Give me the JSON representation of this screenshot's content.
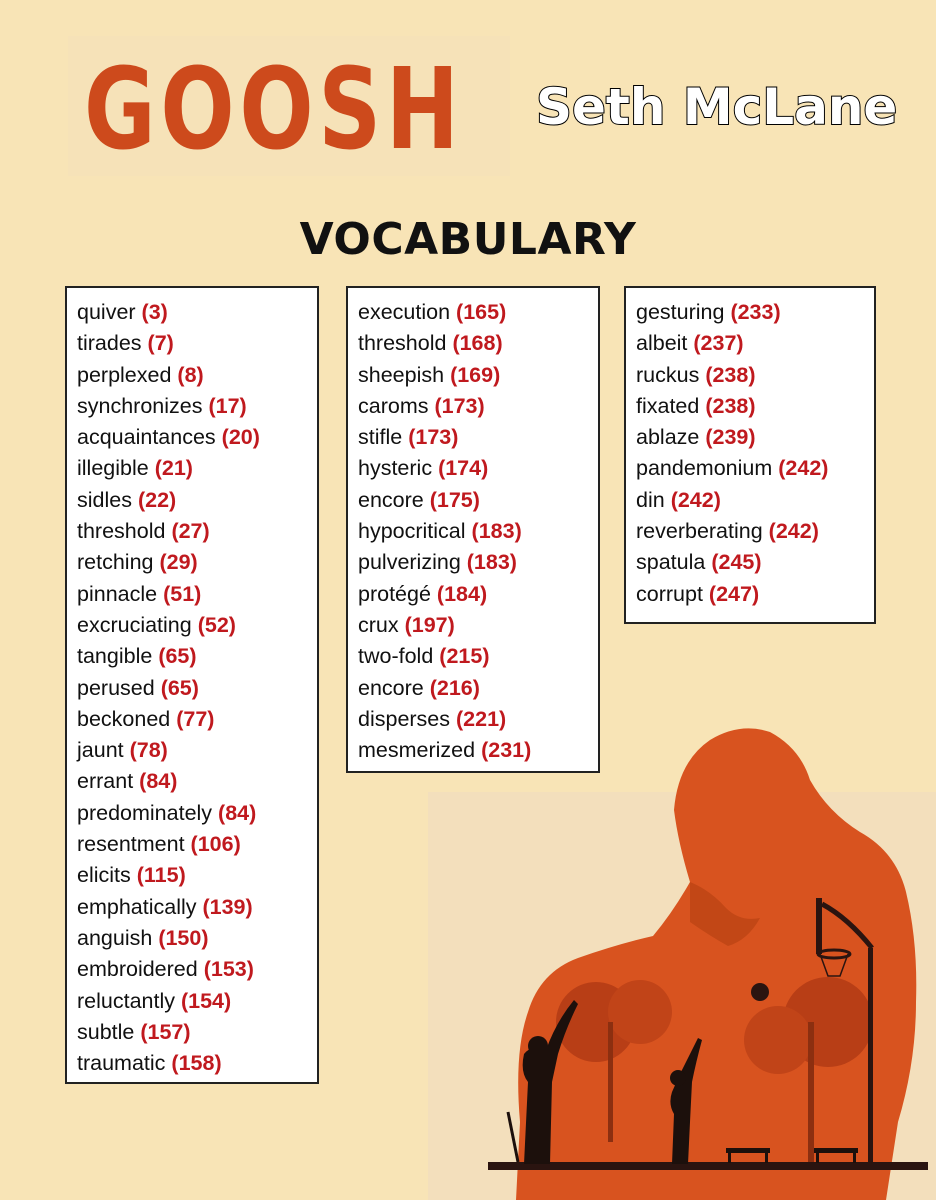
{
  "header": {
    "book_title": "GOOSH",
    "author": "Seth McLane",
    "heading": "VOCABULARY"
  },
  "columns": [
    {
      "items": [
        {
          "word": "quiver",
          "page": "(3)"
        },
        {
          "word": "tirades",
          "page": "(7)"
        },
        {
          "word": "perplexed",
          "page": "(8)"
        },
        {
          "word": "synchronizes",
          "page": "(17)"
        },
        {
          "word": "acquaintances",
          "page": "(20)"
        },
        {
          "word": "illegible",
          "page": "(21)"
        },
        {
          "word": "sidles",
          "page": "(22)"
        },
        {
          "word": "threshold",
          "page": "(27)"
        },
        {
          "word": "retching",
          "page": "(29)"
        },
        {
          "word": "pinnacle",
          "page": "(51)"
        },
        {
          "word": "excruciating",
          "page": "(52)"
        },
        {
          "word": "tangible",
          "page": "(65)"
        },
        {
          "word": "perused",
          "page": "(65)"
        },
        {
          "word": "beckoned",
          "page": "(77)"
        },
        {
          "word": "jaunt",
          "page": "(78)"
        },
        {
          "word": "errant",
          "page": "(84)"
        },
        {
          "word": "predominately",
          "page": "(84)"
        },
        {
          "word": "resentment",
          "page": "(106)"
        },
        {
          "word": "elicits",
          "page": "(115)"
        },
        {
          "word": "emphatically",
          "page": "(139)"
        },
        {
          "word": "anguish",
          "page": "(150)"
        },
        {
          "word": "embroidered",
          "page": "(153)"
        },
        {
          "word": "reluctantly",
          "page": "(154)"
        },
        {
          "word": "subtle",
          "page": "(157)"
        },
        {
          "word": "traumatic",
          "page": "(158)"
        }
      ]
    },
    {
      "items": [
        {
          "word": "execution",
          "page": "(165)"
        },
        {
          "word": "threshold",
          "page": "(168)"
        },
        {
          "word": "sheepish",
          "page": "(169)"
        },
        {
          "word": "caroms",
          "page": "(173)"
        },
        {
          "word": "stifle",
          "page": "(173)"
        },
        {
          "word": "hysteric",
          "page": "(174)"
        },
        {
          "word": "encore",
          "page": "(175)"
        },
        {
          "word": "hypocritical",
          "page": "(183)"
        },
        {
          "word": "pulverizing",
          "page": "(183)"
        },
        {
          "word": "protégé",
          "page": "(184)"
        },
        {
          "word": "crux",
          "page": "(197)"
        },
        {
          "word": "two-fold",
          "page": "(215)"
        },
        {
          "word": "encore",
          "page": "(216)"
        },
        {
          "word": "disperses",
          "page": "(221)"
        },
        {
          "word": "mesmerized",
          "page": "(231)"
        }
      ]
    },
    {
      "items": [
        {
          "word": "gesturing",
          "page": "(233)"
        },
        {
          "word": "albeit",
          "page": "(237)"
        },
        {
          "word": "ruckus",
          "page": "(238)"
        },
        {
          "word": "fixated",
          "page": "(238)"
        },
        {
          "word": "ablaze",
          "page": "(239)"
        },
        {
          "word": "pandemonium",
          "page": "(242)"
        },
        {
          "word": "din",
          "page": "(242)"
        },
        {
          "word": "reverberating",
          "page": "(242)"
        },
        {
          "word": "spatula",
          "page": "(245)"
        },
        {
          "word": "corrupt",
          "page": "(247)"
        }
      ]
    }
  ],
  "colors": {
    "background": "#f8e4b6",
    "title": "#cd4a1c",
    "page_number": "#c0191e",
    "silhouette": "#d8531f"
  },
  "art": {
    "icon": "silhouette-basketball-cover-art"
  }
}
